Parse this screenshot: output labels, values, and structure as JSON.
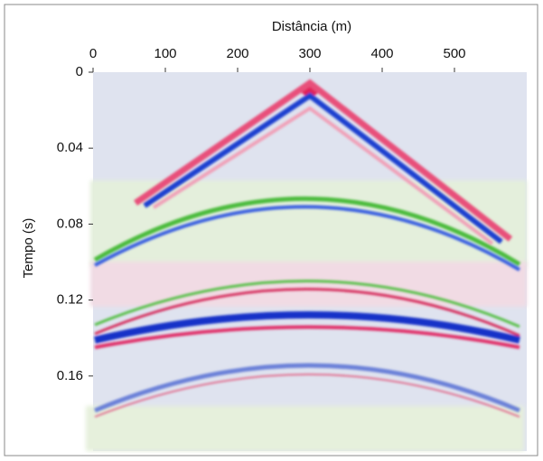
{
  "chart_data": {
    "type": "image",
    "x_label": "Distância (m)",
    "y_label": "Tempo (s)",
    "xlim": [
      0,
      600
    ],
    "ylim": [
      0,
      0.2
    ],
    "y_inverted": true,
    "xticks": [
      0,
      100,
      200,
      300,
      400,
      500
    ],
    "yticks": [
      0,
      0.04,
      0.08,
      0.12,
      0.16
    ]
  }
}
